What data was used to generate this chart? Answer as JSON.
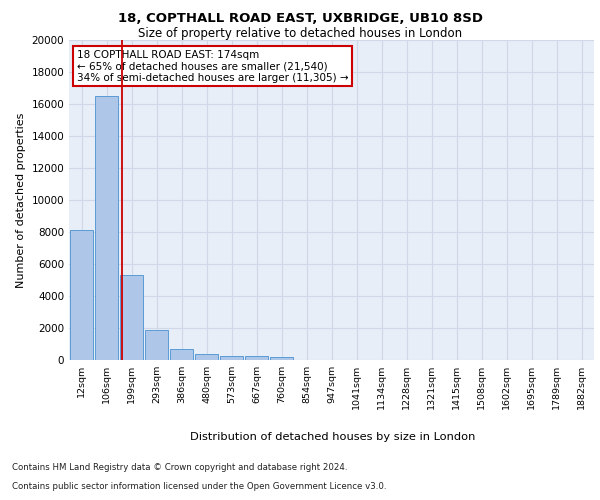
{
  "title1": "18, COPTHALL ROAD EAST, UXBRIDGE, UB10 8SD",
  "title2": "Size of property relative to detached houses in London",
  "xlabel": "Distribution of detached houses by size in London",
  "ylabel": "Number of detached properties",
  "footnote1": "Contains HM Land Registry data © Crown copyright and database right 2024.",
  "footnote2": "Contains public sector information licensed under the Open Government Licence v3.0.",
  "bar_labels": [
    "12sqm",
    "106sqm",
    "199sqm",
    "293sqm",
    "386sqm",
    "480sqm",
    "573sqm",
    "667sqm",
    "760sqm",
    "854sqm",
    "947sqm",
    "1041sqm",
    "1134sqm",
    "1228sqm",
    "1321sqm",
    "1415sqm",
    "1508sqm",
    "1602sqm",
    "1695sqm",
    "1789sqm",
    "1882sqm"
  ],
  "bar_values": [
    8100,
    16500,
    5300,
    1850,
    700,
    350,
    270,
    220,
    170,
    0,
    0,
    0,
    0,
    0,
    0,
    0,
    0,
    0,
    0,
    0,
    0
  ],
  "bar_color": "#aec6e8",
  "bar_edge_color": "#5b9bd5",
  "grid_color": "#d0d8e8",
  "background_color": "#e8eef8",
  "annotation_text": "18 COPTHALL ROAD EAST: 174sqm\n← 65% of detached houses are smaller (21,540)\n34% of semi-detached houses are larger (11,305) →",
  "annotation_box_color": "#ffffff",
  "annotation_box_edge": "#cc0000",
  "vline_color": "#cc0000",
  "ylim": [
    0,
    20000
  ],
  "yticks": [
    0,
    2000,
    4000,
    6000,
    8000,
    10000,
    12000,
    14000,
    16000,
    18000,
    20000
  ]
}
